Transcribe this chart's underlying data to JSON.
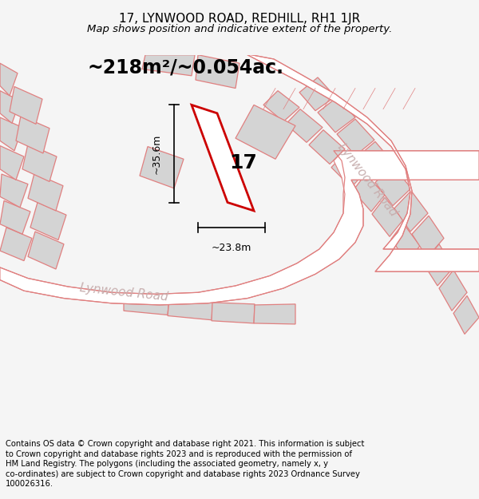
{
  "title_line1": "17, LYNWOOD ROAD, REDHILL, RH1 1JR",
  "title_line2": "Map shows position and indicative extent of the property.",
  "area_text": "~218m²/~0.054ac.",
  "property_label": "17",
  "dim_width": "~23.8m",
  "dim_height": "~35.6m",
  "road_label_bottom": "Lynwood Road",
  "road_label_right": "Lynwood Road",
  "footer_line1": "Contains OS data © Crown copyright and database right 2021. This information is subject",
  "footer_line2": "to Crown copyright and database rights 2023 and is reproduced with the permission of",
  "footer_line3": "HM Land Registry. The polygons (including the associated geometry, namely x, y",
  "footer_line4": "co-ordinates) are subject to Crown copyright and database rights 2023 Ordnance Survey",
  "footer_line5": "100026316.",
  "bg_color": "#f5f5f5",
  "map_bg_color": "#ffffff",
  "plot_fill": "#ffffff",
  "plot_edge": "#cc0000",
  "other_plot_fill": "#d4d4d4",
  "other_plot_edge": "#e08080",
  "road_fill": "#ffffff",
  "road_edge": "#e08080"
}
